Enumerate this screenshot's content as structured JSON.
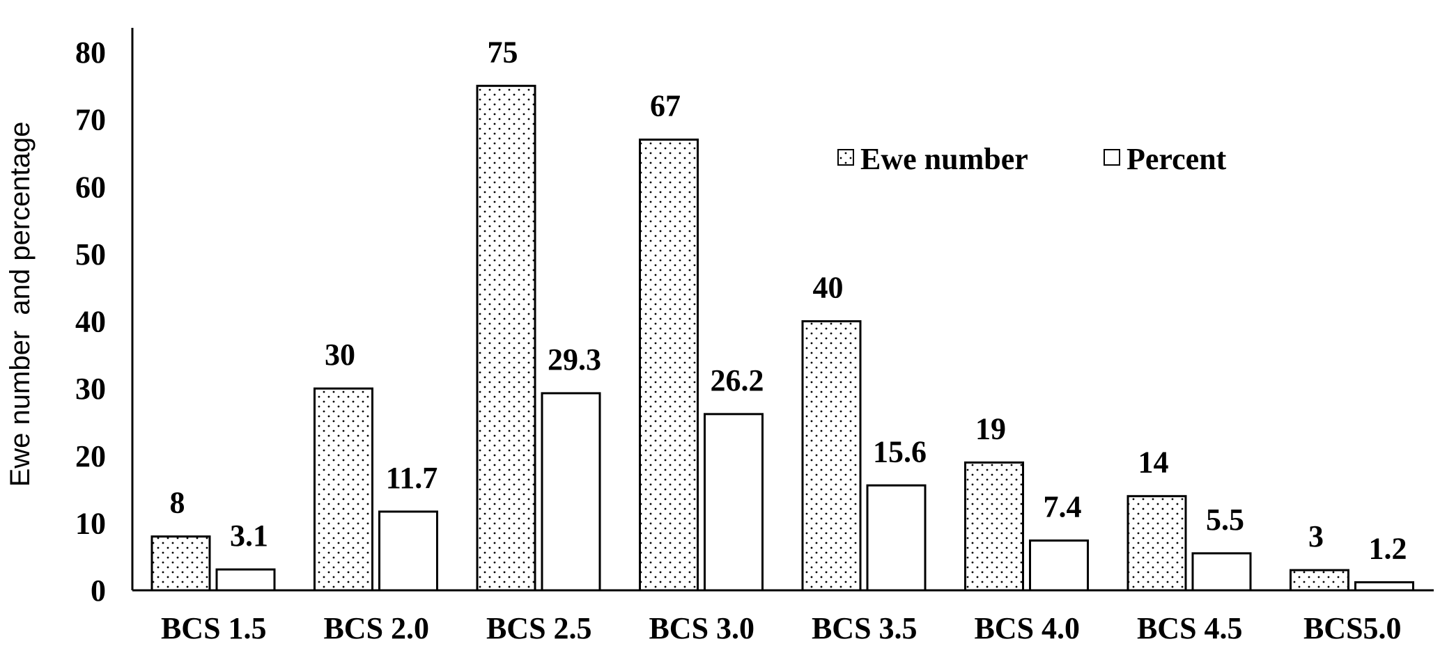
{
  "chart_data": {
    "type": "bar",
    "title": "",
    "xlabel": "",
    "ylabel": "Ewe number  and percentage",
    "categories": [
      "BCS 1.5",
      "BCS 2.0",
      "BCS 2.5",
      "BCS 3.0",
      "BCS 3.5",
      "BCS 4.0",
      "BCS 4.5",
      "BCS5.0"
    ],
    "series": [
      {
        "name": "Ewe number",
        "values": [
          8,
          30,
          75,
          67,
          40,
          19,
          14,
          3
        ],
        "labels": [
          "8",
          "30",
          "75",
          "67",
          "40",
          "19",
          "14",
          "3"
        ],
        "pattern": "dotted"
      },
      {
        "name": "Percent",
        "values": [
          3.1,
          11.7,
          29.3,
          26.2,
          15.6,
          7.4,
          5.5,
          1.2
        ],
        "labels": [
          "3.1",
          "11.7",
          "29.3",
          "26.2",
          "15.6",
          "7.4",
          "5.5",
          "1.2"
        ],
        "pattern": "solid-white"
      }
    ],
    "ylim": [
      0,
      80
    ],
    "yticks": [
      "0",
      "10",
      "20",
      "30",
      "40",
      "50",
      "60",
      "70",
      "80"
    ],
    "grid": false,
    "legend": "top-right",
    "colors": {
      "bar_stroke": "#000000",
      "bar_fill": "#ffffff",
      "dot_color": "#000000",
      "axis": "#000000",
      "text": "#000000"
    }
  }
}
